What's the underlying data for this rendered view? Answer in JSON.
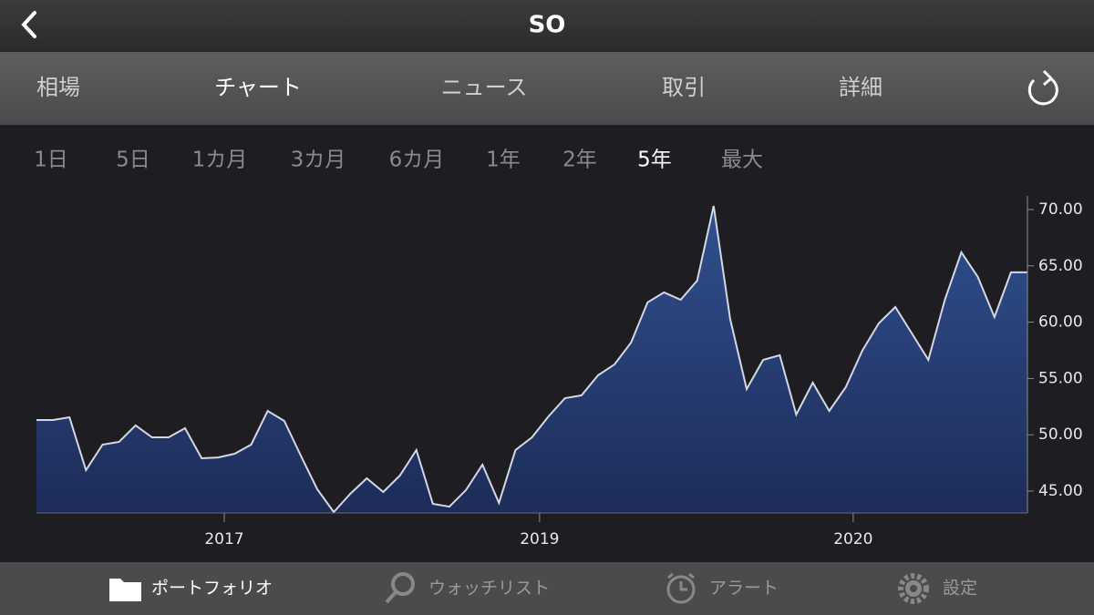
{
  "header": {
    "title": "SO"
  },
  "tabs": {
    "items": [
      "相場",
      "チャート",
      "ニュース",
      "取引",
      "詳細"
    ],
    "selected": 1
  },
  "ranges": {
    "items": [
      "1日",
      "5日",
      "1カ月",
      "3カ月",
      "6カ月",
      "1年",
      "2年",
      "5年",
      "最大"
    ],
    "selected": 7
  },
  "chart_data": {
    "type": "area",
    "x": [
      0,
      1,
      2,
      3,
      4,
      5,
      6,
      7,
      8,
      9,
      10,
      11,
      12,
      13,
      14,
      15,
      16,
      17,
      18,
      19,
      20,
      21,
      22,
      23,
      24,
      25,
      26,
      27,
      28,
      29,
      30,
      31,
      32,
      33,
      34,
      35,
      36,
      37,
      38,
      39,
      40,
      41,
      42,
      43,
      44,
      45,
      46,
      47,
      48,
      49,
      50,
      51,
      52,
      53,
      54,
      55,
      56,
      57,
      58,
      59,
      60
    ],
    "values": [
      51.31,
      51.31,
      51.55,
      46.86,
      49.13,
      49.37,
      50.83,
      49.77,
      49.77,
      50.58,
      47.91,
      47.99,
      48.32,
      49.13,
      52.12,
      51.23,
      48.16,
      45.16,
      43.14,
      44.76,
      46.13,
      44.92,
      46.38,
      48.64,
      43.87,
      43.62,
      45.08,
      47.35,
      43.95,
      48.64,
      49.77,
      51.63,
      53.25,
      53.5,
      55.28,
      56.25,
      58.19,
      61.75,
      62.64,
      61.99,
      63.69,
      70.32,
      60.29,
      54.06,
      56.65,
      57.06,
      51.8,
      54.63,
      52.12,
      54.22,
      57.46,
      59.89,
      61.34,
      59.0,
      56.65,
      61.99,
      66.2,
      64.01,
      60.45,
      64.42,
      64.42
    ],
    "xlim": [
      0,
      60
    ],
    "xticks": [
      {
        "value": 11.37,
        "label": "2017"
      },
      {
        "value": 30.46,
        "label": "2019"
      },
      {
        "value": 49.45,
        "label": "2020"
      }
    ],
    "ylim": [
      43.06,
      71.21
    ],
    "yticks": [
      {
        "value": 45,
        "label": "45.00"
      },
      {
        "value": 50,
        "label": "50.00"
      },
      {
        "value": 55,
        "label": "55.00"
      },
      {
        "value": 60,
        "label": "60.00"
      },
      {
        "value": 65,
        "label": "65.00"
      },
      {
        "value": 70,
        "label": "70.00"
      }
    ],
    "color": "#2c4580",
    "line_color": "#d4d8e4"
  },
  "nav": {
    "items": [
      "ポートフォリオ",
      "ウォッチリスト",
      "アラート",
      "設定"
    ],
    "selected": 0
  }
}
